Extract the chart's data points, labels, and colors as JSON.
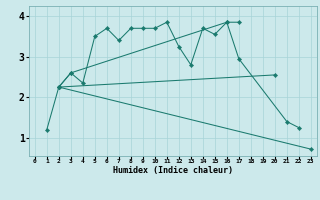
{
  "xlabel": "Humidex (Indice chaleur)",
  "background_color": "#cce9eb",
  "line_color": "#1a7a6e",
  "grid_color": "#a8d4d8",
  "ylim": [
    0.55,
    4.25
  ],
  "xlim": [
    -0.5,
    23.5
  ],
  "yticks": [
    1,
    2,
    3,
    4
  ],
  "xticks": [
    0,
    1,
    2,
    3,
    4,
    5,
    6,
    7,
    8,
    9,
    10,
    11,
    12,
    13,
    14,
    15,
    16,
    17,
    18,
    19,
    20,
    21,
    22,
    23
  ],
  "line1_x": [
    1,
    2,
    3,
    4,
    5,
    6,
    7,
    8,
    9,
    10,
    11,
    12,
    13,
    14,
    15,
    16,
    17
  ],
  "line1_y": [
    1.2,
    2.25,
    2.6,
    2.35,
    3.5,
    3.7,
    3.4,
    3.7,
    3.7,
    3.7,
    3.85,
    3.25,
    2.8,
    3.7,
    3.55,
    3.85,
    3.85
  ],
  "line2_x": [
    2,
    3,
    16,
    17,
    21,
    22
  ],
  "line2_y": [
    2.25,
    2.6,
    3.85,
    2.95,
    1.4,
    1.25
  ],
  "line3_x": [
    2,
    20
  ],
  "line3_y": [
    2.25,
    2.55
  ],
  "line4_x": [
    2,
    23
  ],
  "line4_y": [
    2.25,
    0.72
  ]
}
